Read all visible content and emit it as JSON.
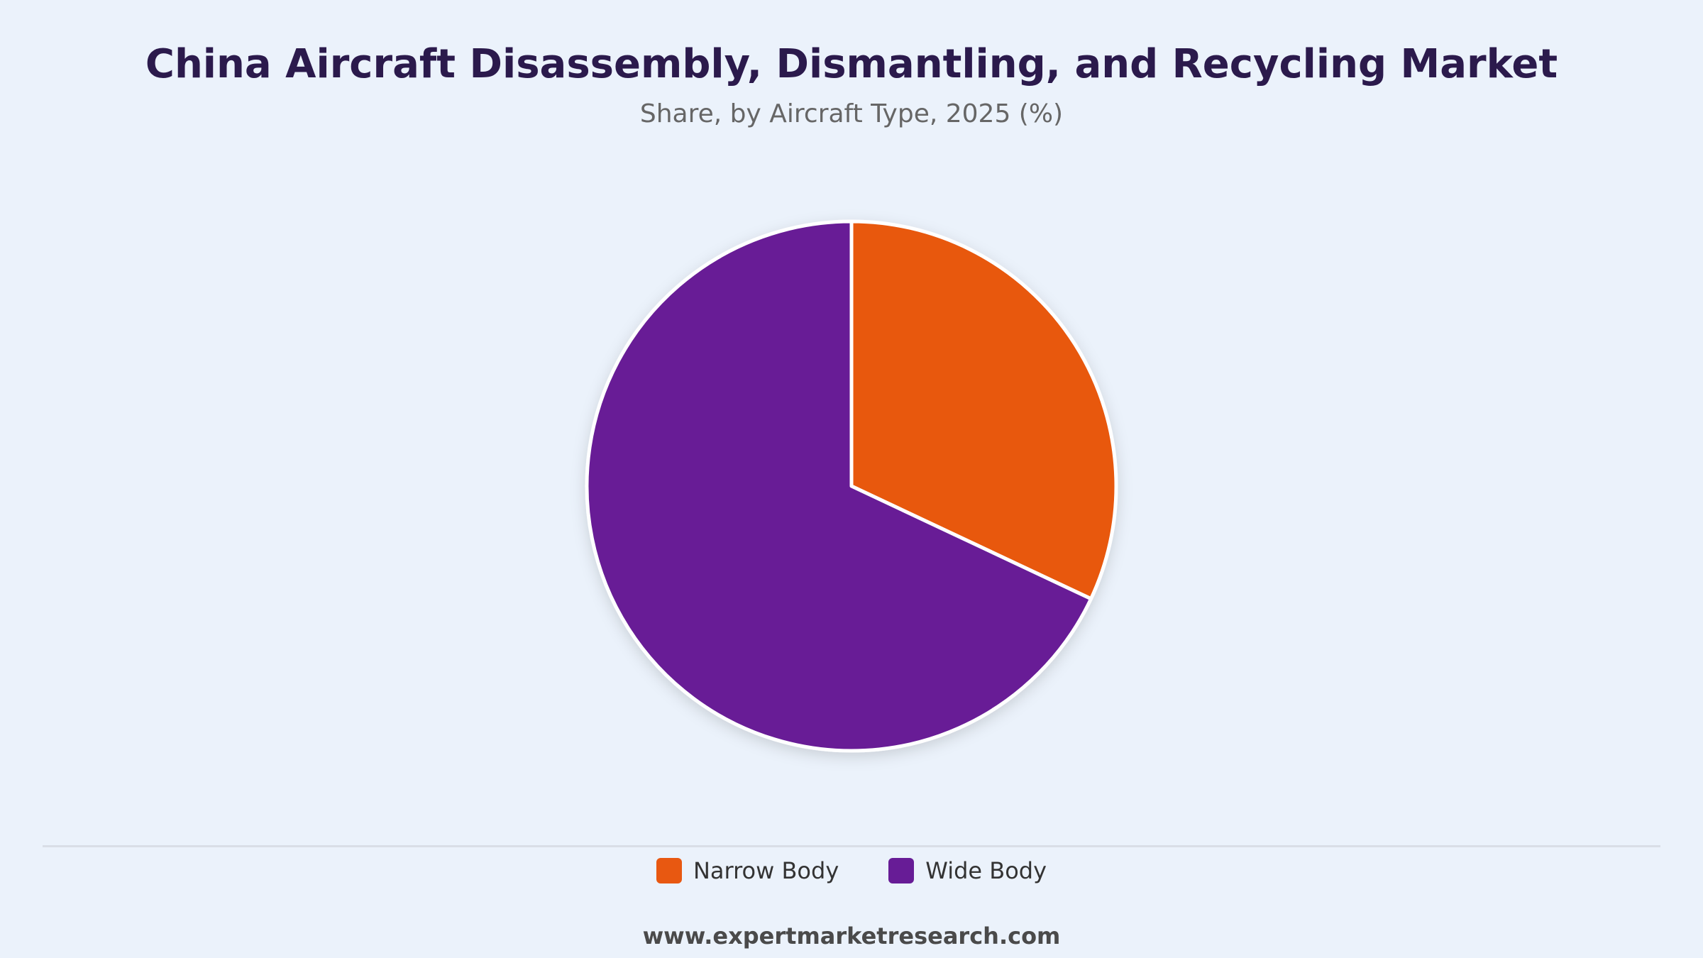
{
  "chart_data": {
    "type": "pie",
    "title": "China Aircraft Disassembly, Dismantling, and Recycling Market",
    "subtitle": "Share, by Aircraft Type, 2025 (%)",
    "categories": [
      "Narrow Body",
      "Wide Body"
    ],
    "values": [
      32,
      68
    ],
    "colors": [
      "#E85811",
      "#671C96"
    ],
    "legend_position": "bottom-center"
  },
  "footer": {
    "website": "www.expertmarketresearch.com"
  }
}
